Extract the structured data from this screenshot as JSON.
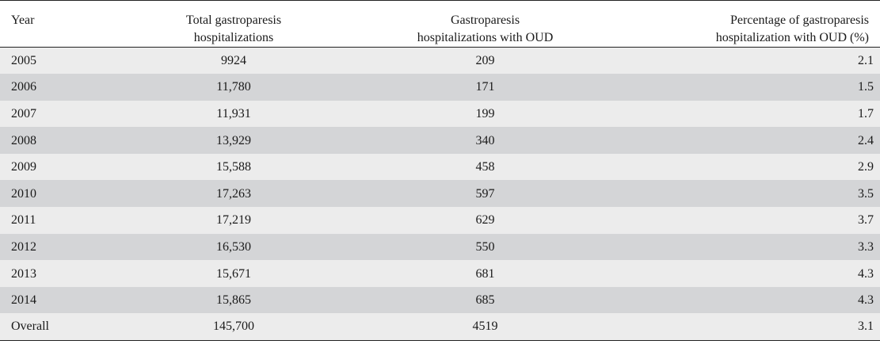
{
  "table": {
    "headers": {
      "year": "Year",
      "total": [
        "Total gastroparesis",
        "hospitalizations"
      ],
      "oud": [
        "Gastroparesis",
        "hospitalizations with OUD"
      ],
      "pct": [
        "Percentage of gastroparesis",
        "hospitalization with OUD (%)"
      ]
    },
    "rows": [
      {
        "year": "2005",
        "total": "9924",
        "oud": "209",
        "pct": "2.1"
      },
      {
        "year": "2006",
        "total": "11,780",
        "oud": "171",
        "pct": "1.5"
      },
      {
        "year": "2007",
        "total": "11,931",
        "oud": "199",
        "pct": "1.7"
      },
      {
        "year": "2008",
        "total": "13,929",
        "oud": "340",
        "pct": "2.4"
      },
      {
        "year": "2009",
        "total": "15,588",
        "oud": "458",
        "pct": "2.9"
      },
      {
        "year": "2010",
        "total": "17,263",
        "oud": "597",
        "pct": "3.5"
      },
      {
        "year": "2011",
        "total": "17,219",
        "oud": "629",
        "pct": "3.7"
      },
      {
        "year": "2012",
        "total": "16,530",
        "oud": "550",
        "pct": "3.3"
      },
      {
        "year": "2013",
        "total": "15,671",
        "oud": "681",
        "pct": "4.3"
      },
      {
        "year": "2014",
        "total": "15,865",
        "oud": "685",
        "pct": "4.3"
      },
      {
        "year": "Overall",
        "total": "145,700",
        "oud": "4519",
        "pct": "3.1"
      }
    ]
  },
  "colors": {
    "row_light": "#ececec",
    "row_dark": "#d4d5d7",
    "rule": "#222222"
  }
}
